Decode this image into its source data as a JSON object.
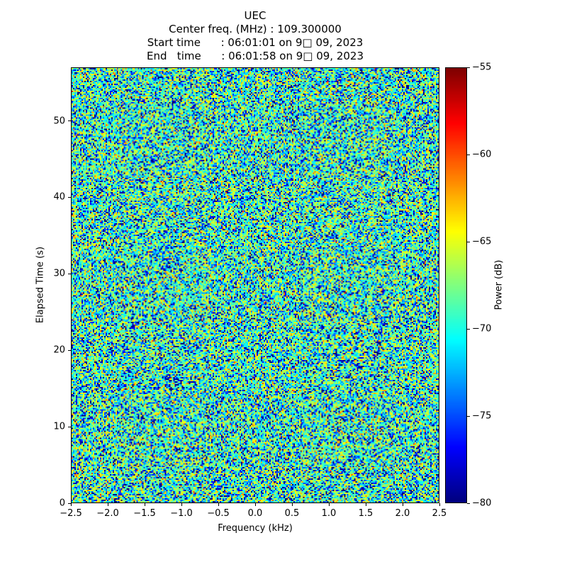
{
  "figure": {
    "background": "#ffffff"
  },
  "title": {
    "line1": "UEC",
    "line2": "Center freq. (MHz) : 109.300000",
    "line3": "Start time      : 06:01:01 on 9□ 09, 2023",
    "line4": "End   time      : 06:01:58 on 9□ 09, 2023"
  },
  "chart_data": {
    "type": "heatmap",
    "title": "UEC",
    "center_freq_mhz": 109.3,
    "start_time": "06:01:01 on 9□ 09, 2023",
    "end_time": "06:01:58 on 9□ 09, 2023",
    "xlabel": "Frequency (kHz)",
    "ylabel": "Elapsed Time (s)",
    "xlim": [
      -2.5,
      2.5
    ],
    "ylim": [
      0,
      57
    ],
    "grid": false,
    "xticks": {
      "values": [
        -2.5,
        -2.0,
        -1.5,
        -1.0,
        -0.5,
        0.0,
        0.5,
        1.0,
        1.5,
        2.0,
        2.5
      ],
      "labels": [
        "−2.5",
        "−2.0",
        "−1.5",
        "−1.0",
        "−0.5",
        "0.0",
        "0.5",
        "1.0",
        "1.5",
        "2.0",
        "2.5"
      ]
    },
    "yticks": {
      "values": [
        0,
        10,
        20,
        30,
        40,
        50
      ],
      "labels": [
        "0",
        "10",
        "20",
        "30",
        "40",
        "50"
      ]
    },
    "colorbar": {
      "label": "Power (dB)",
      "vmin": -80,
      "vmax": -55,
      "colormap": "jet",
      "position": "right",
      "ticks": {
        "values": [
          -55,
          -60,
          -65,
          -70,
          -75,
          -80
        ],
        "labels": [
          "−55",
          "−60",
          "−65",
          "−70",
          "−75",
          "−80"
        ]
      }
    },
    "content": {
      "description": "Featureless random radio noise across the full frequency and time span; mostly cyan-green speckle near -70 dB with sparse yellow (~-64 dB) and dark blue (~-78 dB) cells; no visible signal lines.",
      "noise_model": "power_db = base_db + 10*log10(Exp(1))",
      "base_db": -68,
      "median_db": -69.6,
      "range_db": [
        -80,
        -58
      ],
      "grid": {
        "cols": 260,
        "rows": 308
      }
    }
  }
}
